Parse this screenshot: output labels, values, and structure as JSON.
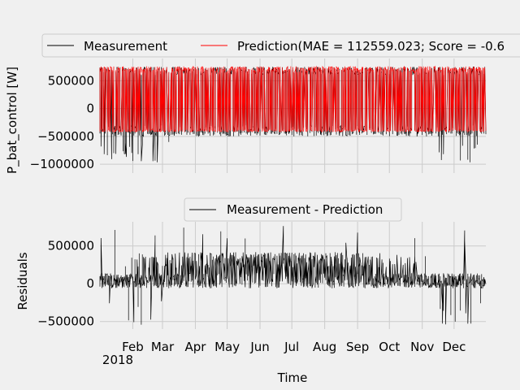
{
  "chart_data": [
    {
      "type": "line",
      "title": "",
      "xlabel": "",
      "ylabel": "P_bat_control [W]",
      "xlim": [
        "2018-01-01",
        "2018-12-31"
      ],
      "ylim": [
        -1100000,
        900000
      ],
      "yticks": [
        -1000000,
        -500000,
        0,
        500000
      ],
      "ytick_labels": [
        "−1000000",
        "−500000",
        "0",
        "500000"
      ],
      "grid": true,
      "legend": {
        "placement": "top",
        "entries": [
          "Measurement",
          "Prediction(MAE = 112559.023; Score = -0.6"
        ]
      },
      "series": [
        {
          "name": "Measurement",
          "color": "#000000",
          "upper_envelope": 750000,
          "lower_envelope_typical": -500000,
          "lower_envelope_min": -970000
        },
        {
          "name": "Prediction(MAE = 112559.023; Score = -0.6",
          "color": "#ff0000",
          "upper_envelope": 760000,
          "lower_envelope": -420000
        }
      ]
    },
    {
      "type": "line",
      "title": "",
      "xlabel": "Time",
      "ylabel": "Residuals",
      "xlim": [
        "2018-01-01",
        "2018-12-31"
      ],
      "ylim": [
        -600000,
        820000
      ],
      "yticks": [
        -500000,
        0,
        500000
      ],
      "ytick_labels": [
        "−500000",
        "0",
        "500000"
      ],
      "xtick_labels": [
        "Feb",
        "Mar",
        "Apr",
        "May",
        "Jun",
        "Jul",
        "Aug",
        "Sep",
        "Oct",
        "Nov",
        "Dec"
      ],
      "xtick_year_label": "2018",
      "grid": true,
      "legend": {
        "placement": "top",
        "entries": [
          "Measurement - Prediction"
        ]
      },
      "series": [
        {
          "name": "Measurement - Prediction",
          "color": "#000000",
          "typical_upper_summer": 420000,
          "max": 770000,
          "min": -560000
        }
      ]
    }
  ]
}
